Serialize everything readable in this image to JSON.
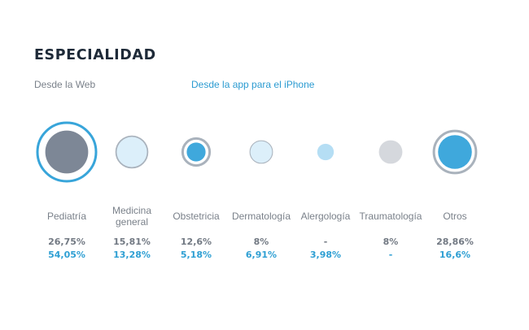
{
  "title": "ESPECIALIDAD",
  "legend": {
    "web": "Desde la Web",
    "app": "Desde la app para el iPhone"
  },
  "colors": {
    "web": "#7d8796",
    "app": "#3fa8dc",
    "app_light": "#dceffa",
    "ring_web": "#a9b2bc",
    "ring_app": "#38a5da"
  },
  "chart_data": {
    "type": "bubble",
    "title": "ESPECIALIDAD",
    "series": [
      {
        "name": "Desde la Web",
        "labels": [
          "26,75%",
          "15,81%",
          "12,6%",
          "8%",
          "-",
          "8%",
          "28,86%"
        ],
        "values": [
          26.75,
          15.81,
          12.6,
          8,
          null,
          8,
          28.86
        ]
      },
      {
        "name": "Desde la app para el iPhone",
        "labels": [
          "54,05%",
          "13,28%",
          "5,18%",
          "6,91%",
          "3,98%",
          "-",
          "16,6%"
        ],
        "values": [
          54.05,
          13.28,
          5.18,
          6.91,
          3.98,
          null,
          16.6
        ]
      }
    ],
    "categories": [
      "Pediatría",
      "Medicina general",
      "Obstetricia",
      "Dermatología",
      "Alergología",
      "Traumatología",
      "Otros"
    ]
  },
  "items": [
    {
      "label": "Pediatría",
      "web": "26,75%",
      "app": "54,05%"
    },
    {
      "label": "Medicina general",
      "web": "15,81%",
      "app": "13,28%"
    },
    {
      "label": "Obstetricia",
      "web": "12,6%",
      "app": "5,18%"
    },
    {
      "label": "Dermatología",
      "web": "8%",
      "app": "6,91%"
    },
    {
      "label": "Alergología",
      "web": "-",
      "app": "3,98%"
    },
    {
      "label": "Traumatología",
      "web": "8%",
      "app": "-"
    },
    {
      "label": "Otros",
      "web": "28,86%",
      "app": "16,6%"
    }
  ]
}
